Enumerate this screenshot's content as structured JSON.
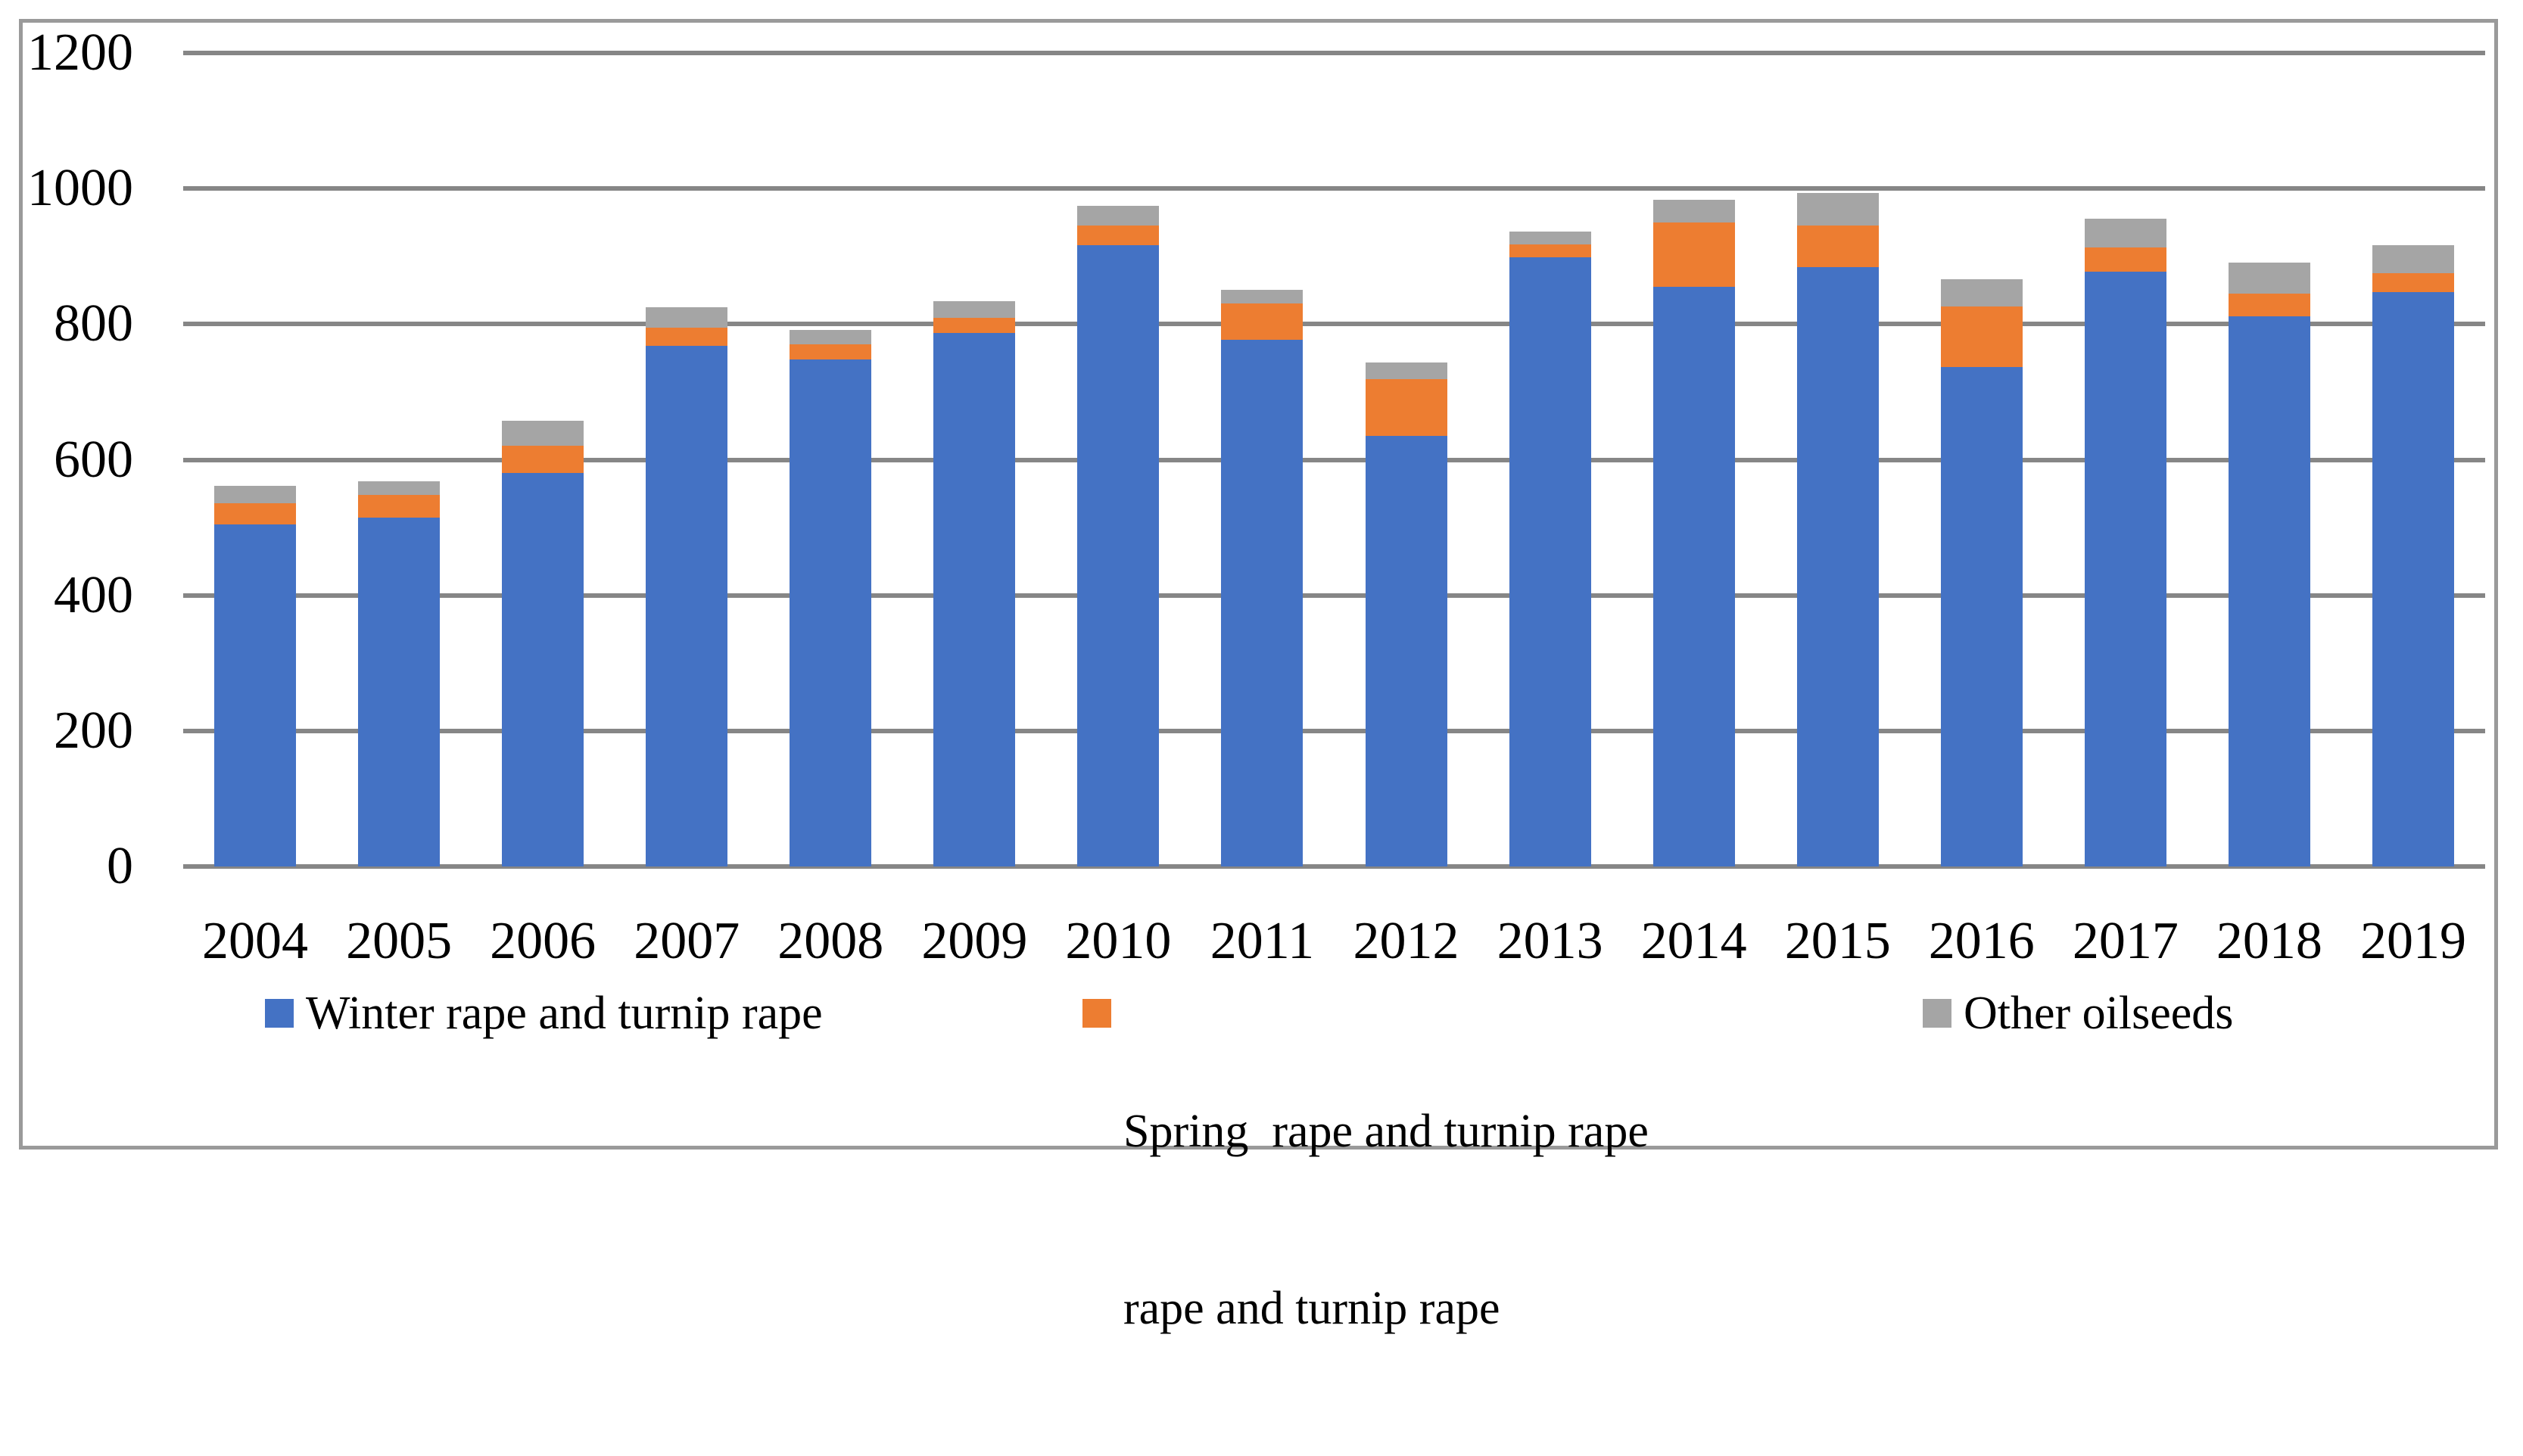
{
  "chart_data": {
    "type": "bar",
    "stacked": true,
    "title": "",
    "xlabel": "",
    "ylabel": "",
    "categories": [
      "2004",
      "2005",
      "2006",
      "2007",
      "2008",
      "2009",
      "2010",
      "2011",
      "2012",
      "2013",
      "2014",
      "2015",
      "2016",
      "2017",
      "2018",
      "2019"
    ],
    "series": [
      {
        "name": "Winter rape and turnip rape",
        "color": "#4472C4",
        "values": [
          505,
          515,
          580,
          768,
          748,
          787,
          917,
          777,
          635,
          899,
          855,
          884,
          737,
          877,
          812,
          847
        ]
      },
      {
        "name": "Spring rape and turnip rape",
        "color": "#ED7D31",
        "values": [
          31,
          33,
          41,
          27,
          22,
          22,
          28,
          53,
          84,
          19,
          95,
          62,
          89,
          36,
          33,
          28
        ]
      },
      {
        "name": "Other oilseeds",
        "color": "#A5A5A5",
        "values": [
          26,
          20,
          37,
          30,
          22,
          25,
          29,
          21,
          24,
          19,
          34,
          48,
          40,
          42,
          46,
          42
        ]
      }
    ],
    "ylim": [
      0,
      1200
    ],
    "yticks": [
      "0",
      "200",
      "400",
      "600",
      "800",
      "1000",
      "1200"
    ],
    "grid": "horizontal",
    "legend_position": "bottom",
    "legend": [
      {
        "label_lines": [
          "Winter rape and turnip rape"
        ],
        "color": "#4472C4"
      },
      {
        "label_lines": [
          "Spring  rape and turnip rape",
          "rape and turnip rape"
        ],
        "color": "#ED7D31"
      },
      {
        "label_lines": [
          "Other oilseeds"
        ],
        "color": "#A5A5A5"
      }
    ],
    "colors": {
      "gridline": "#868686",
      "frame_border": "#9a9a9a",
      "text": "#000000",
      "background": "#ffffff"
    }
  }
}
